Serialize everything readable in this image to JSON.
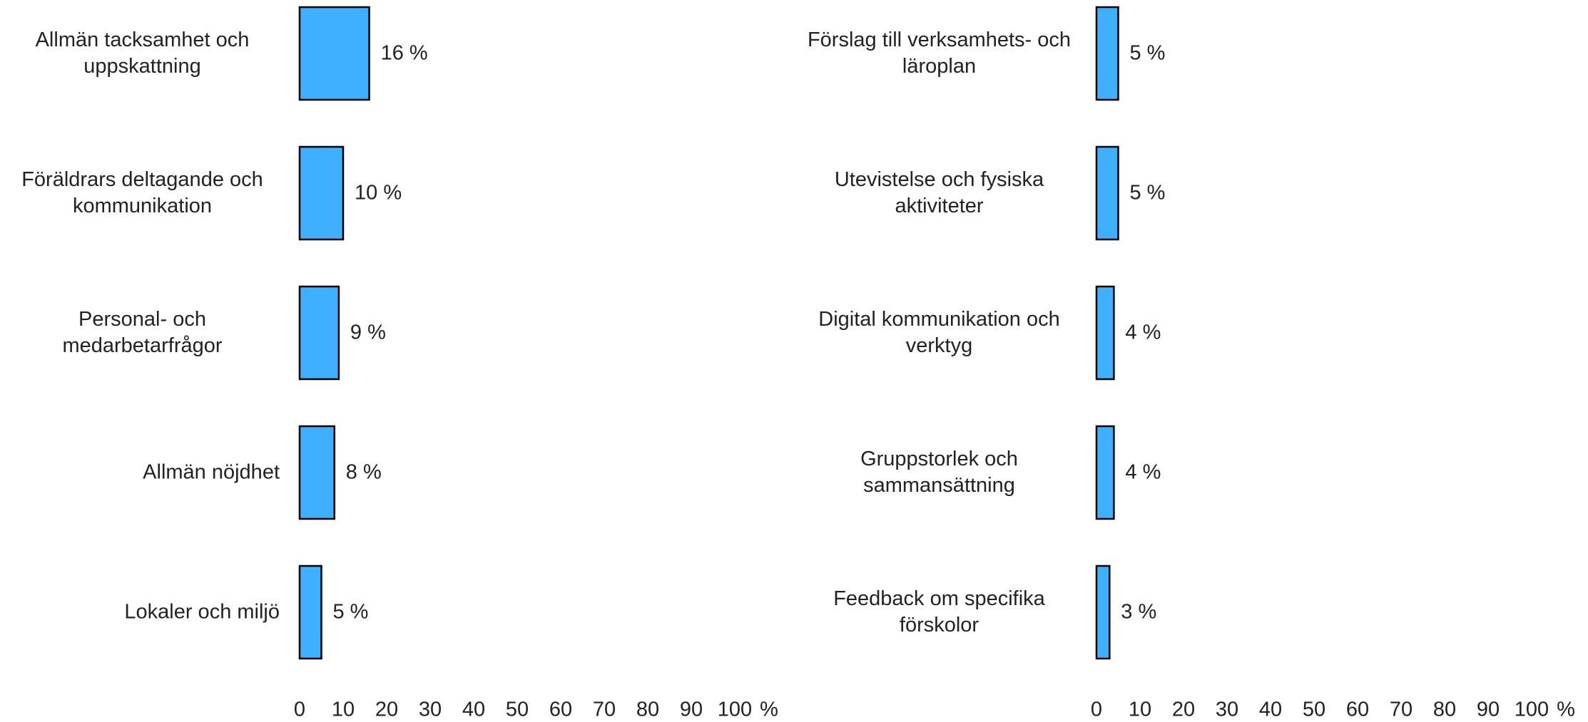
{
  "chart_data": [
    {
      "type": "barh",
      "categories": [
        "Allmän tacksamhet och uppskattning",
        "Föräldrars deltagande och kommunikation",
        "Personal- och medarbetarfrågor",
        "Allmän nöjdhet",
        "Lokaler och miljö"
      ],
      "values": [
        16,
        10,
        9,
        8,
        5
      ],
      "value_labels": [
        "16 %",
        "10 %",
        "9 %",
        "8 %",
        "5 %"
      ],
      "color": "#3fb0ff",
      "xlim": [
        0,
        100
      ],
      "xticks": [
        0,
        10,
        20,
        30,
        40,
        50,
        60,
        70,
        80,
        90,
        100
      ],
      "xlabel": "%"
    },
    {
      "type": "barh",
      "categories": [
        "Förslag till verksamhets- och läroplan",
        "Utevistelse och fysiska aktiviteter",
        "Digital kommunikation och verktyg",
        "Gruppstorlek och sammansättning",
        "Feedback om specifika förskolor"
      ],
      "values": [
        5,
        5,
        4,
        4,
        3
      ],
      "value_labels": [
        "5 %",
        "5 %",
        "4 %",
        "4 %",
        "3 %"
      ],
      "color": "#3fb0ff",
      "xlim": [
        0,
        100
      ],
      "xticks": [
        0,
        10,
        20,
        30,
        40,
        50,
        60,
        70,
        80,
        90,
        100
      ],
      "xlabel": "%"
    }
  ]
}
